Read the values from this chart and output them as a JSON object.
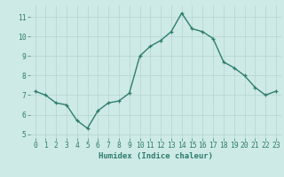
{
  "x": [
    0,
    1,
    2,
    3,
    4,
    5,
    6,
    7,
    8,
    9,
    10,
    11,
    12,
    13,
    14,
    15,
    16,
    17,
    18,
    19,
    20,
    21,
    22,
    23
  ],
  "y": [
    7.2,
    7.0,
    6.6,
    6.5,
    5.7,
    5.3,
    6.2,
    6.6,
    6.7,
    7.1,
    9.0,
    9.5,
    9.8,
    10.25,
    11.2,
    10.4,
    10.25,
    9.9,
    8.7,
    8.4,
    8.0,
    7.4,
    7.0,
    7.2
  ],
  "line_color": "#2d7d6e",
  "marker": "+",
  "marker_size": 3,
  "bg_color": "#ceeae6",
  "grid_color": "#b8d8d4",
  "xlabel": "Humidex (Indice chaleur)",
  "ylim": [
    4.8,
    11.6
  ],
  "xlim": [
    -0.5,
    23.5
  ],
  "yticks": [
    5,
    6,
    7,
    8,
    9,
    10,
    11
  ],
  "xticks": [
    0,
    1,
    2,
    3,
    4,
    5,
    6,
    7,
    8,
    9,
    10,
    11,
    12,
    13,
    14,
    15,
    16,
    17,
    18,
    19,
    20,
    21,
    22,
    23
  ],
  "tick_color": "#2d7d6e",
  "label_fontsize": 6.5,
  "tick_fontsize": 5.8,
  "linewidth": 1.0,
  "markeredgewidth": 0.9
}
